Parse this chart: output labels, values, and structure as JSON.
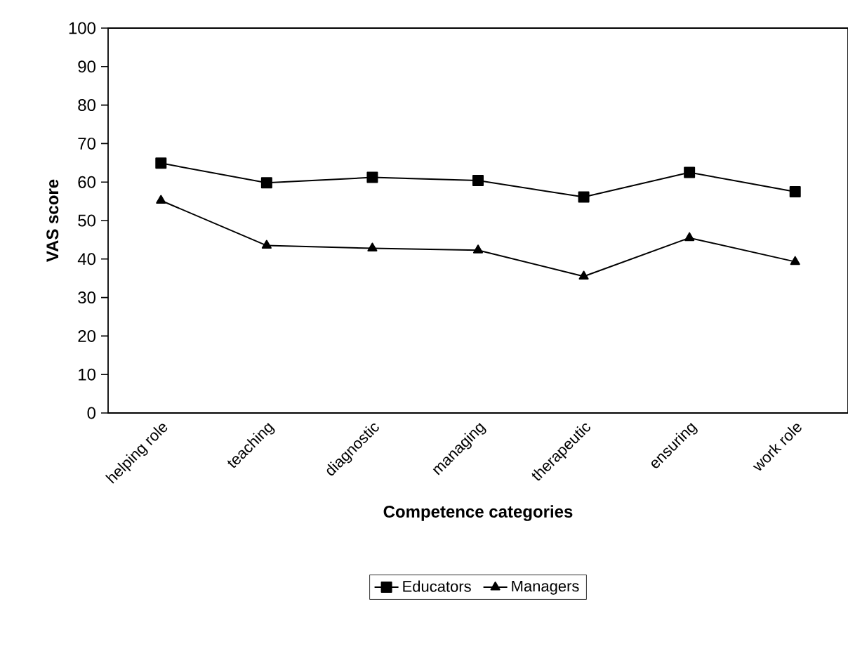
{
  "chart_data": {
    "type": "line",
    "xlabel": "Competence categories",
    "ylabel": "VAS score",
    "categories": [
      "helping role",
      "teaching",
      "diagnostic",
      "managing",
      "therapeutic",
      "ensuring",
      "work role"
    ],
    "series": [
      {
        "name": "Educators",
        "color": "#000000",
        "marker": "square",
        "values": [
          64.9,
          59.8,
          61.2,
          60.4,
          56.1,
          62.5,
          57.5
        ]
      },
      {
        "name": "Managers",
        "color": "#000000",
        "marker": "triangle",
        "values": [
          55.2,
          43.5,
          42.8,
          42.3,
          35.5,
          45.5,
          39.3
        ]
      }
    ],
    "ylim": [
      0,
      100
    ],
    "yticks": [
      0,
      10,
      20,
      30,
      40,
      50,
      60,
      70,
      80,
      90,
      100
    ],
    "grid": false,
    "legend": "bottom",
    "line_style": "solid"
  }
}
